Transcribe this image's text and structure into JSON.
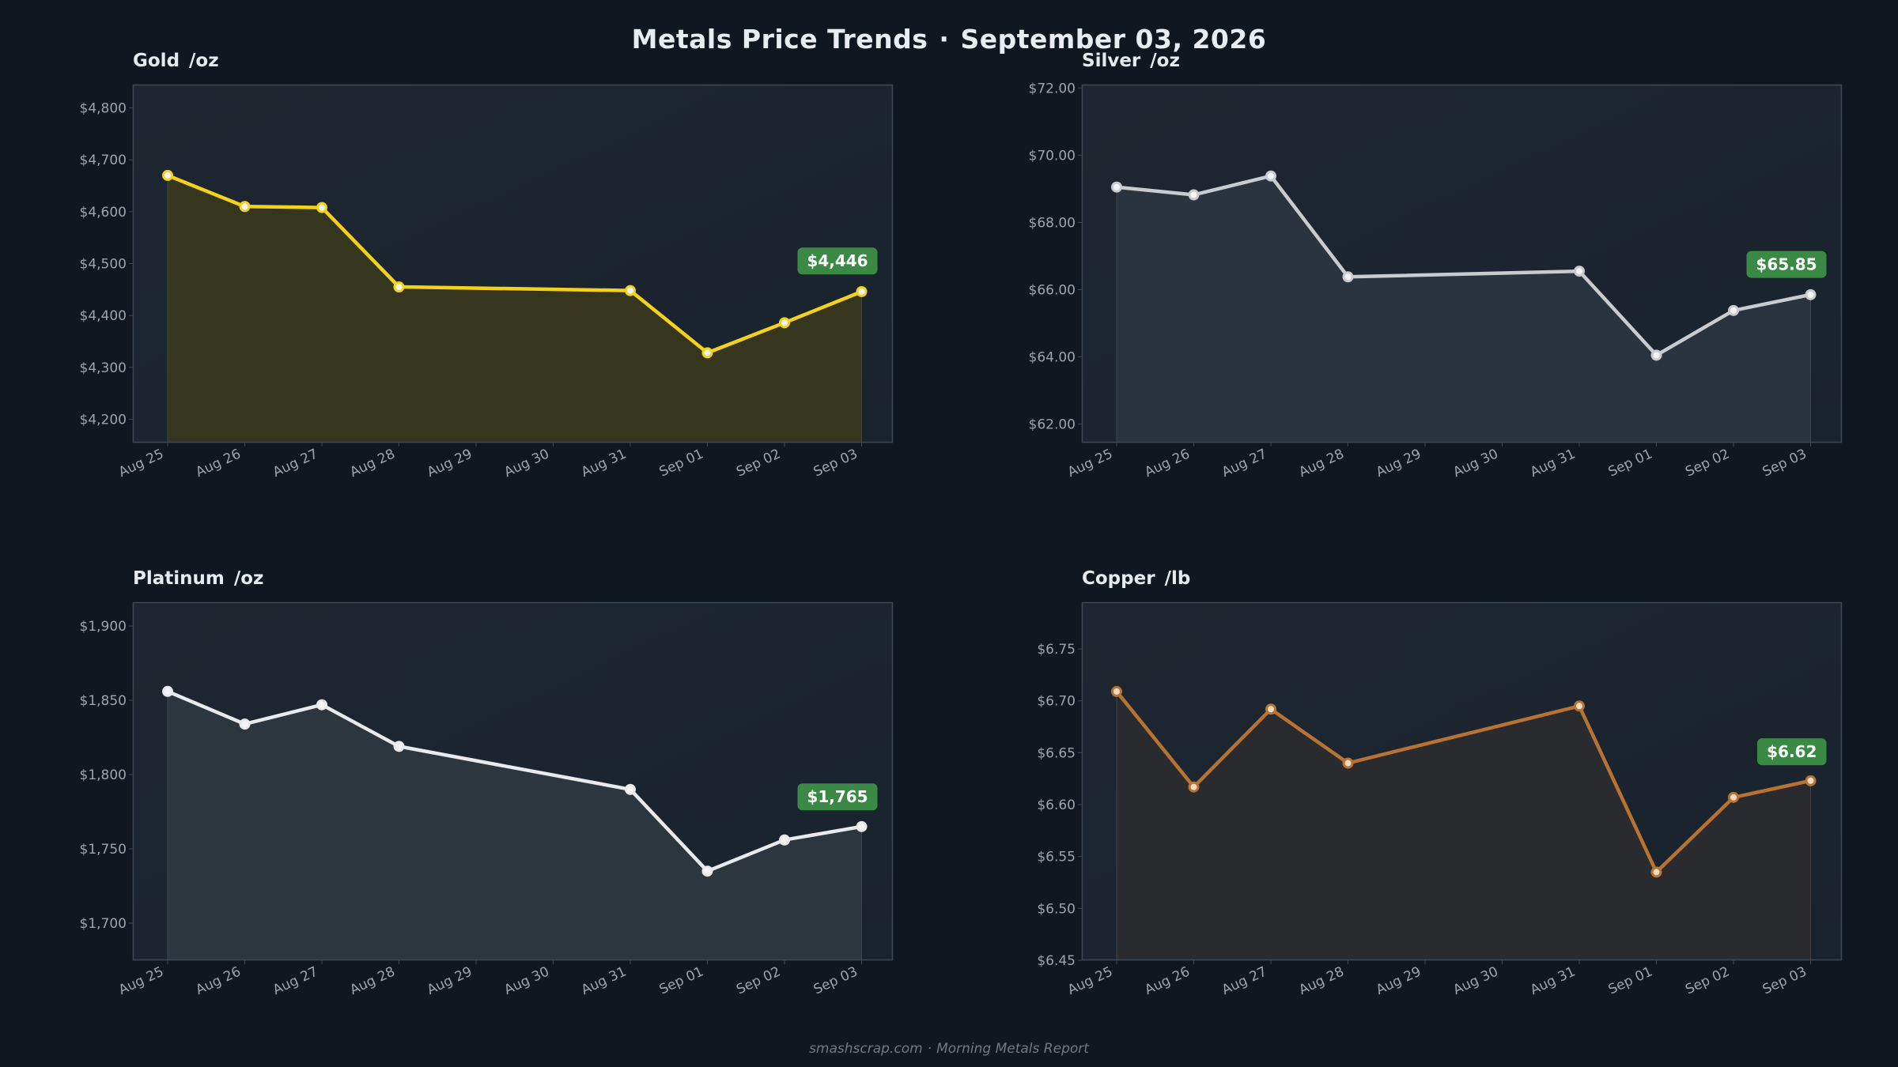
{
  "title": {
    "main": "Metals Price Trends",
    "separator": "·",
    "date": "September 03, 2026"
  },
  "footer": {
    "site": "smashscrap.com",
    "separator": "·",
    "report": "Morning Metals Report"
  },
  "colors": {
    "background": "#0f1821",
    "plot_bg": "#1b2530",
    "badge": "#3a8a45",
    "gold": "#f5d21a",
    "silver": "#c9ccce",
    "platinum": "#e8eaec",
    "copper": "#b87333"
  },
  "chart_data": [
    {
      "type": "area",
      "name": "gold",
      "title": "Gold",
      "unit": "/oz",
      "color": "#f5d21a",
      "fill": "#36361f",
      "categories": [
        "Aug 25",
        "Aug 26",
        "Aug 27",
        "Aug 28",
        "Aug 29",
        "Aug 30",
        "Aug 31",
        "Sep 01",
        "Sep 02",
        "Sep 03"
      ],
      "x": [
        0,
        1,
        2,
        3,
        6,
        7,
        8,
        9
      ],
      "values": [
        4670,
        4610,
        4608,
        4455,
        4448,
        4328,
        4386,
        4446
      ],
      "ylim": [
        4155,
        4845
      ],
      "yticks": [
        4200,
        4300,
        4400,
        4500,
        4600,
        4700,
        4800
      ],
      "ytick_labels": [
        "$4,200",
        "$4,300",
        "$4,400",
        "$4,500",
        "$4,600",
        "$4,700",
        "$4,800"
      ],
      "badge": "$4,446",
      "badge_value": 4505,
      "grid": false
    },
    {
      "type": "area",
      "name": "silver",
      "title": "Silver",
      "unit": "/oz",
      "color": "#c9ccce",
      "fill": "#2a343e",
      "categories": [
        "Aug 25",
        "Aug 26",
        "Aug 27",
        "Aug 28",
        "Aug 29",
        "Aug 30",
        "Aug 31",
        "Sep 01",
        "Sep 02",
        "Sep 03"
      ],
      "x": [
        0,
        1,
        2,
        3,
        6,
        7,
        8,
        9
      ],
      "values": [
        69.05,
        68.82,
        69.38,
        66.38,
        66.55,
        64.05,
        65.38,
        65.85
      ],
      "ylim": [
        61.45,
        72.1
      ],
      "yticks": [
        62,
        64,
        66,
        68,
        70,
        72
      ],
      "ytick_labels": [
        "$62.00",
        "$64.00",
        "$66.00",
        "$68.00",
        "$70.00",
        "$72.00"
      ],
      "badge": "$65.85",
      "badge_value": 66.75,
      "grid": false
    },
    {
      "type": "area",
      "name": "platinum",
      "title": "Platinum",
      "unit": "/oz",
      "color": "#e8eaec",
      "fill": "#2c363f",
      "categories": [
        "Aug 25",
        "Aug 26",
        "Aug 27",
        "Aug 28",
        "Aug 29",
        "Aug 30",
        "Aug 31",
        "Sep 01",
        "Sep 02",
        "Sep 03"
      ],
      "x": [
        0,
        1,
        2,
        3,
        6,
        7,
        8,
        9
      ],
      "values": [
        1856,
        1834,
        1847,
        1819,
        1790,
        1735,
        1756,
        1765
      ],
      "ylim": [
        1675,
        1916
      ],
      "yticks": [
        1700,
        1750,
        1800,
        1850,
        1900
      ],
      "ytick_labels": [
        "$1,700",
        "$1,750",
        "$1,800",
        "$1,850",
        "$1,900"
      ],
      "badge": "$1,765",
      "badge_value": 1785,
      "grid": false
    },
    {
      "type": "area",
      "name": "copper",
      "title": "Copper",
      "unit": "/lb",
      "color": "#b87333",
      "fill": "#2a2b2e",
      "categories": [
        "Aug 25",
        "Aug 26",
        "Aug 27",
        "Aug 28",
        "Aug 29",
        "Aug 30",
        "Aug 31",
        "Sep 01",
        "Sep 02",
        "Sep 03"
      ],
      "x": [
        0,
        1,
        2,
        3,
        6,
        7,
        8,
        9
      ],
      "values": [
        6.709,
        6.617,
        6.692,
        6.64,
        6.695,
        6.535,
        6.607,
        6.623
      ],
      "ylim": [
        6.45,
        6.795
      ],
      "yticks": [
        6.45,
        6.5,
        6.55,
        6.6,
        6.65,
        6.7,
        6.75
      ],
      "ytick_labels": [
        "$6.45",
        "$6.50",
        "$6.55",
        "$6.60",
        "$6.65",
        "$6.70",
        "$6.75"
      ],
      "badge": "$6.62",
      "badge_value": 6.651,
      "grid": false
    }
  ]
}
